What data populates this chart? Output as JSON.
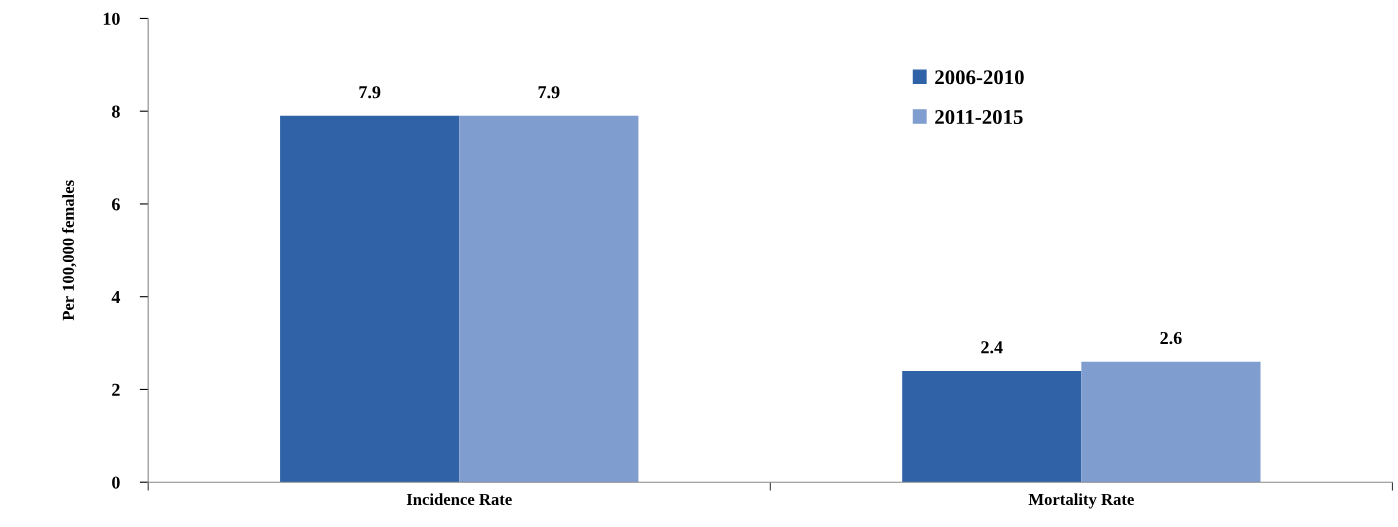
{
  "chart_data": {
    "type": "bar",
    "ylabel": "Per 100,000 females",
    "categories": [
      "Incidence Rate",
      "Mortality Rate"
    ],
    "series": [
      {
        "name": "2006-2010",
        "color": "#2f62a6",
        "values": [
          7.9,
          2.4
        ]
      },
      {
        "name": "2011-2015",
        "color": "#7f9dcf",
        "values": [
          7.9,
          2.6
        ]
      }
    ],
    "ylim": [
      0,
      10
    ],
    "yticks": [
      0,
      2,
      4,
      6,
      8,
      10
    ],
    "grid": false,
    "legend": "top right",
    "data_labels": true
  }
}
